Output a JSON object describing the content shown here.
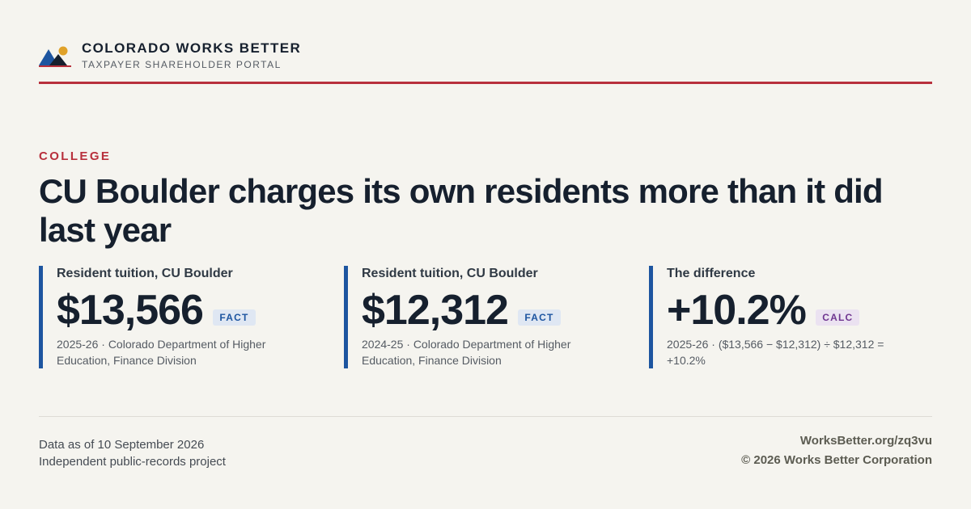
{
  "brand": {
    "name": "COLORADO WORKS BETTER",
    "subtitle": "TAXPAYER SHAREHOLDER PORTAL",
    "logo_icon": "mountains-sun-icon",
    "accent_color": "#b8303c",
    "primary_color": "#1d55a0"
  },
  "article": {
    "category": "COLLEGE",
    "headline": "CU Boulder charges its own residents more than it did last year"
  },
  "stats": [
    {
      "label": "Resident tuition, CU Boulder",
      "value": "$13,566",
      "badge": "FACT",
      "note": "2025-26 · Colorado Department of Higher Education, Finance Division"
    },
    {
      "label": "Resident tuition, CU Boulder",
      "value": "$12,312",
      "badge": "FACT",
      "note": "2024-25 · Colorado Department of Higher Education, Finance Division"
    },
    {
      "label": "The difference",
      "value": "+10.2%",
      "badge": "CALC",
      "note": "2025-26 · ($13,566 − $12,312) ÷ $12,312 = +10.2%"
    }
  ],
  "footer": {
    "data_as_of": "Data as of 10 September 2026",
    "project": "Independent public-records project",
    "url": "WorksBetter.org/zq3vu",
    "copyright": "© 2026 Works Better Corporation"
  }
}
